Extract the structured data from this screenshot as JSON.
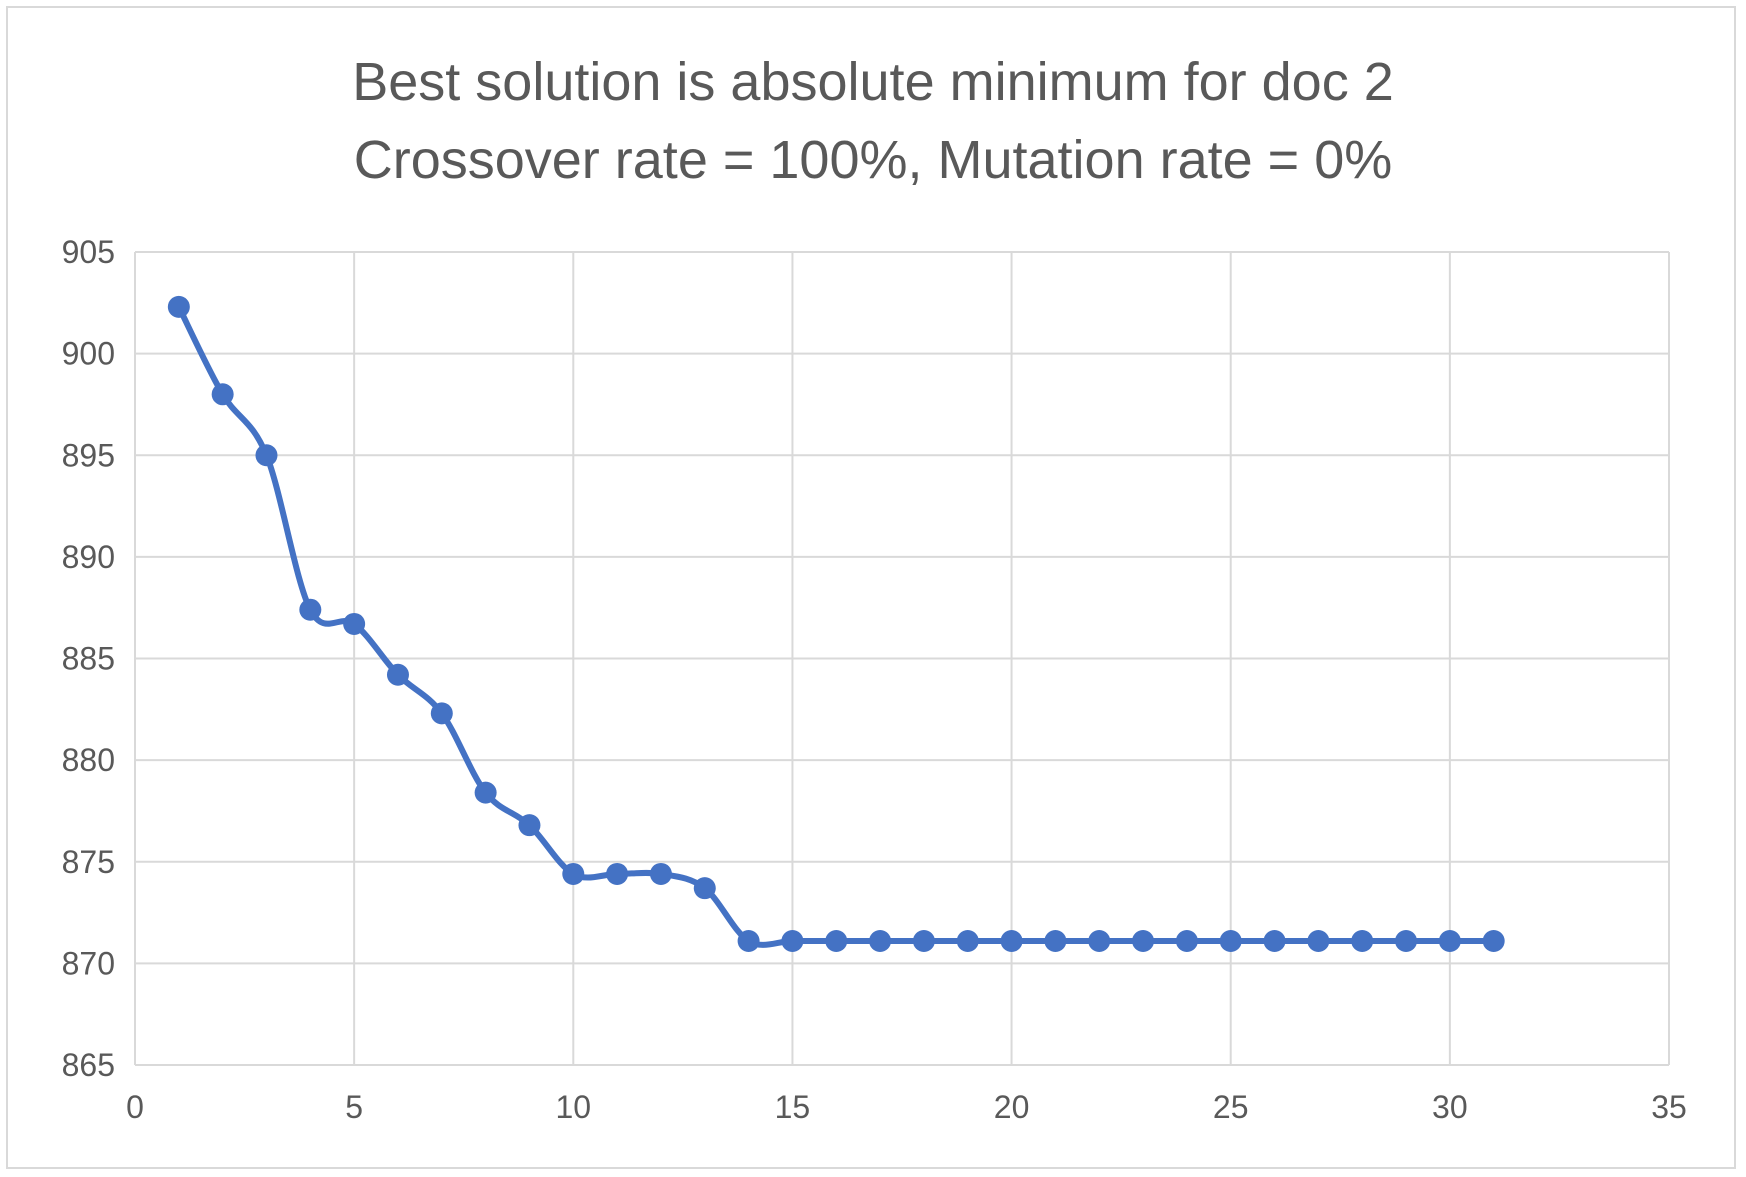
{
  "chart_data": {
    "type": "line",
    "title_lines": [
      "Best solution is absolute minimum for doc 2",
      "Crossover rate = 100%, Mutation rate = 0%"
    ],
    "xlabel": "",
    "ylabel": "",
    "xlim": [
      0,
      35
    ],
    "ylim": [
      865,
      905
    ],
    "x_ticks": [
      0,
      5,
      10,
      15,
      20,
      25,
      30,
      35
    ],
    "y_ticks": [
      865,
      870,
      875,
      880,
      885,
      890,
      895,
      900,
      905
    ],
    "grid": true,
    "legend": "none",
    "series": [
      {
        "color": "#4472c4",
        "marker": "circle",
        "smooth": true,
        "x": [
          1,
          2,
          3,
          4,
          5,
          6,
          7,
          8,
          9,
          10,
          11,
          12,
          13,
          14,
          15,
          16,
          17,
          18,
          19,
          20,
          21,
          22,
          23,
          24,
          25,
          26,
          27,
          28,
          29,
          30,
          31
        ],
        "y": [
          902.3,
          898.0,
          895.0,
          887.4,
          886.7,
          884.2,
          882.3,
          878.4,
          876.8,
          874.4,
          874.4,
          874.4,
          873.7,
          871.1,
          871.1,
          871.1,
          871.1,
          871.1,
          871.1,
          871.1,
          871.1,
          871.1,
          871.1,
          871.1,
          871.1,
          871.1,
          871.1,
          871.1,
          871.1,
          871.1,
          871.1
        ]
      }
    ]
  }
}
